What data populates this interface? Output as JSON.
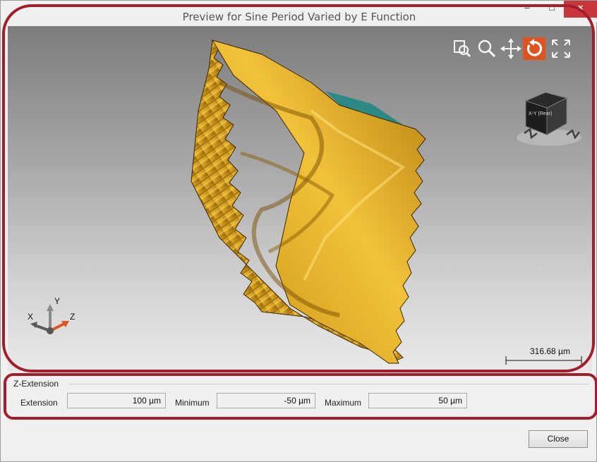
{
  "window": {
    "title": "Preview for Sine Period Varied by E Function",
    "minimize_glyph": "–",
    "maximize_glyph": "□",
    "close_glyph": "×"
  },
  "viewport": {
    "toolbar_icons": [
      "zoom-window-icon",
      "zoom-icon",
      "pan-icon",
      "rotate-icon",
      "fit-view-icon"
    ],
    "active_tool": "rotate-icon",
    "accent_color": "#e0531e",
    "navigation_cube_face": "X-Y (Rear)",
    "axis_labels": {
      "x": "X",
      "y": "Y",
      "z": "Z"
    },
    "scale_label": "316.68 µm",
    "surface_color": "#d9a21f"
  },
  "z_extension": {
    "group_title": "Z-Extension",
    "extension_label": "Extension",
    "extension_value": "100 µm",
    "minimum_label": "Minimum",
    "minimum_value": "-50 µm",
    "maximum_label": "Maximum",
    "maximum_value": "50 µm"
  },
  "footer": {
    "close_label": "Close"
  }
}
